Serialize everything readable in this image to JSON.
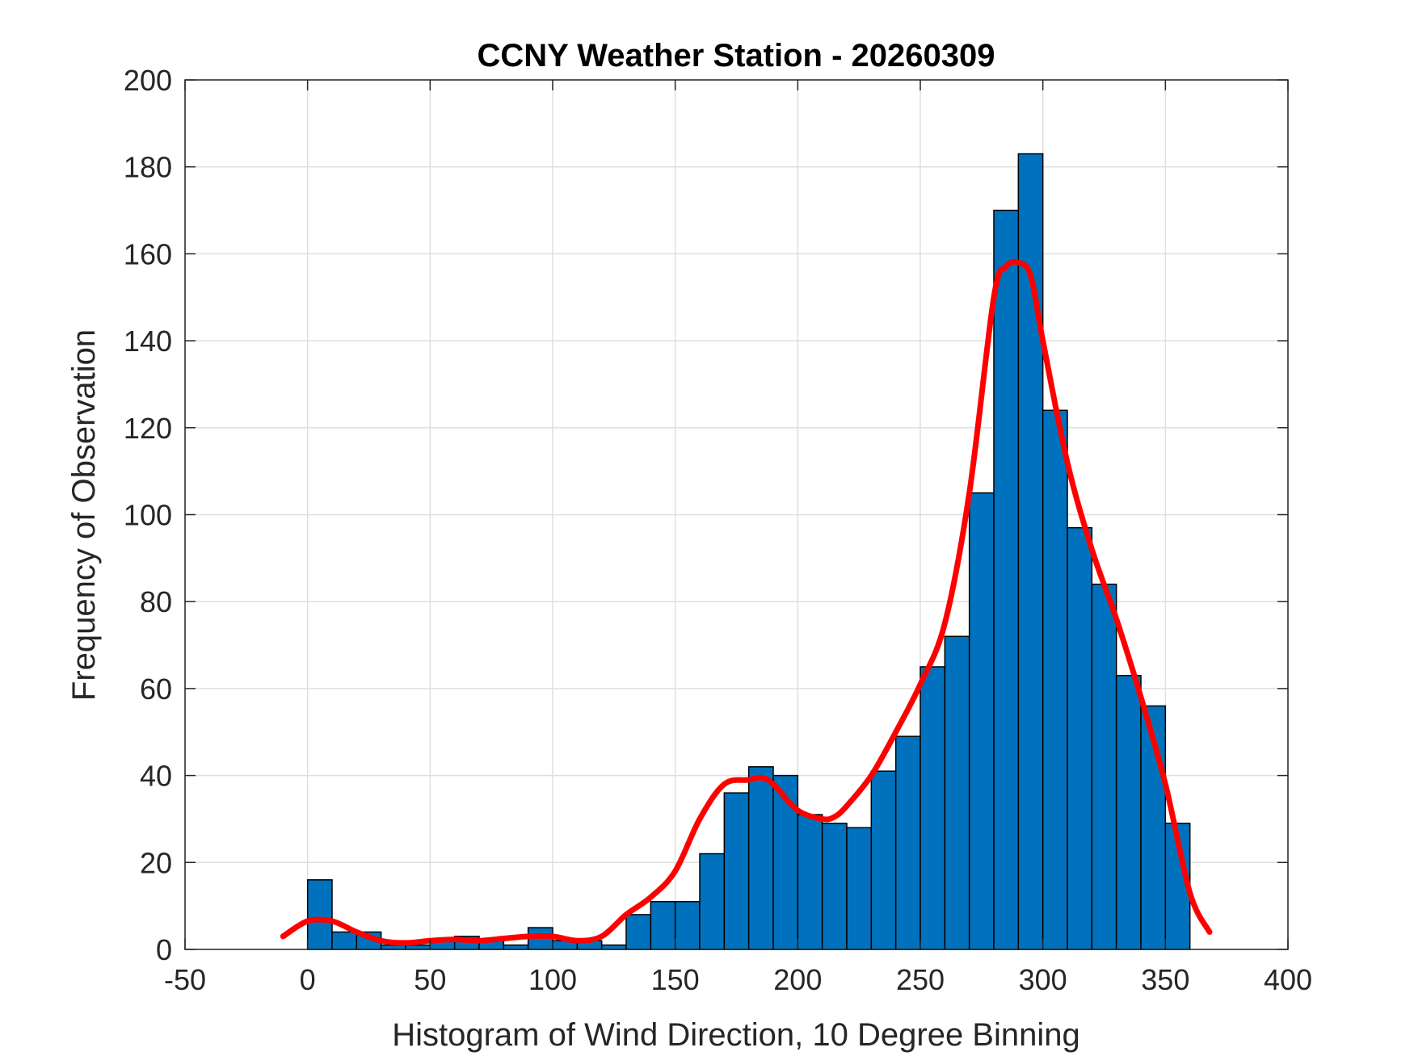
{
  "chart_data": {
    "type": "bar",
    "title": "CCNY Weather Station - 20260309",
    "xlabel": "Histogram of Wind Direction, 10 Degree Binning",
    "ylabel": "Frequency of Observation",
    "xlim": [
      -50,
      400
    ],
    "ylim": [
      0,
      200
    ],
    "xticks": [
      -50,
      0,
      50,
      100,
      150,
      200,
      250,
      300,
      350,
      400
    ],
    "yticks": [
      0,
      20,
      40,
      60,
      80,
      100,
      120,
      140,
      160,
      180,
      200
    ],
    "grid": true,
    "bin_width": 10,
    "bin_edges_start": [
      0,
      10,
      20,
      30,
      40,
      50,
      60,
      70,
      80,
      90,
      100,
      110,
      120,
      130,
      140,
      150,
      160,
      170,
      180,
      190,
      200,
      210,
      220,
      230,
      240,
      250,
      260,
      270,
      280,
      290,
      300,
      310,
      320,
      330,
      340,
      350
    ],
    "values": [
      16,
      4,
      4,
      1,
      1,
      2,
      3,
      2,
      1,
      5,
      2,
      2,
      1,
      8,
      11,
      11,
      22,
      36,
      42,
      40,
      31,
      29,
      28,
      41,
      49,
      65,
      72,
      105,
      170,
      183,
      124,
      97,
      84,
      63,
      56,
      29
    ],
    "bar_color": "#0072BD",
    "curve": {
      "color": "#FF0000",
      "x": [
        -10,
        0,
        10,
        20,
        30,
        40,
        50,
        60,
        70,
        80,
        90,
        100,
        110,
        120,
        130,
        140,
        150,
        160,
        170,
        180,
        185,
        190,
        200,
        210,
        215,
        220,
        230,
        240,
        250,
        260,
        270,
        280,
        285,
        290,
        295,
        300,
        310,
        320,
        330,
        340,
        350,
        360,
        368
      ],
      "y": [
        3,
        6.5,
        6.5,
        4,
        2,
        1.5,
        2,
        2.3,
        2,
        2.5,
        3,
        3,
        2,
        3,
        8,
        12,
        18,
        30,
        38,
        39,
        39.5,
        38,
        32,
        30,
        30.5,
        33,
        40,
        50,
        61,
        75,
        105,
        150,
        157,
        158,
        155,
        140,
        112,
        92,
        76,
        58,
        38,
        13,
        4
      ]
    }
  }
}
